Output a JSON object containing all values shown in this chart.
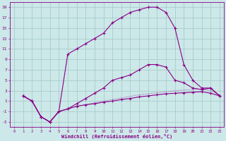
{
  "background_color": "#cce8e8",
  "grid_color": "#aacccc",
  "line_color": "#880088",
  "xlabel": "Windchill (Refroidissement éolien,°C)",
  "xlabel_color": "#880088",
  "xlim": [
    -0.5,
    23.5
  ],
  "ylim": [
    -4,
    20
  ],
  "yticks": [
    -3,
    -1,
    1,
    3,
    5,
    7,
    9,
    11,
    13,
    15,
    17,
    19
  ],
  "xticks": [
    0,
    1,
    2,
    3,
    4,
    5,
    6,
    7,
    8,
    9,
    10,
    11,
    12,
    13,
    14,
    15,
    16,
    17,
    18,
    19,
    20,
    21,
    22,
    23
  ],
  "curve_top_x": [
    1,
    2,
    3,
    4,
    5,
    6,
    7,
    8,
    9,
    10,
    11,
    12,
    13,
    14,
    15,
    16,
    17,
    18,
    19,
    20,
    21,
    22,
    23
  ],
  "curve_top_y": [
    2,
    1,
    -2,
    -3,
    -1,
    10,
    11,
    12,
    13,
    14,
    16,
    17,
    18,
    18.5,
    19,
    19,
    18,
    15,
    8,
    5,
    3.5,
    3.5,
    2
  ],
  "curve_mid_x": [
    1,
    2,
    3,
    4,
    5,
    6,
    7,
    8,
    9,
    10,
    11,
    12,
    13,
    14,
    15,
    16,
    17,
    18,
    19,
    20,
    21,
    22,
    23
  ],
  "curve_mid_y": [
    2,
    1,
    -2,
    -3,
    -1,
    -0.5,
    0.5,
    1.5,
    2.5,
    3.5,
    5.0,
    5.5,
    6.0,
    7.0,
    8.0,
    8.0,
    7.5,
    5.0,
    4.5,
    3.5,
    3.2,
    3.5,
    2.0
  ],
  "curve_bot_x": [
    1,
    2,
    3,
    4,
    5,
    6,
    7,
    8,
    9,
    10,
    11,
    12,
    13,
    14,
    15,
    16,
    17,
    18,
    19,
    20,
    21,
    22,
    23
  ],
  "curve_bot_y": [
    2,
    1,
    -2,
    -3,
    -1,
    -0.5,
    0.0,
    0.3,
    0.5,
    0.8,
    1.0,
    1.3,
    1.5,
    1.8,
    2.0,
    2.2,
    2.4,
    2.5,
    2.6,
    2.7,
    2.8,
    2.5,
    2.0
  ],
  "curve_dotted_x": [
    1,
    2,
    3,
    4,
    5,
    6,
    7,
    8,
    9,
    10,
    11,
    12,
    13,
    14,
    15,
    16,
    17,
    18,
    19,
    20,
    21,
    22,
    23
  ],
  "curve_dotted_y": [
    2,
    1,
    -2,
    -3,
    -1,
    -0.5,
    0.0,
    0.3,
    0.7,
    1.0,
    1.3,
    1.6,
    1.9,
    2.2,
    2.4,
    2.6,
    2.8,
    3.0,
    3.1,
    3.2,
    3.3,
    3.0,
    2.2
  ]
}
